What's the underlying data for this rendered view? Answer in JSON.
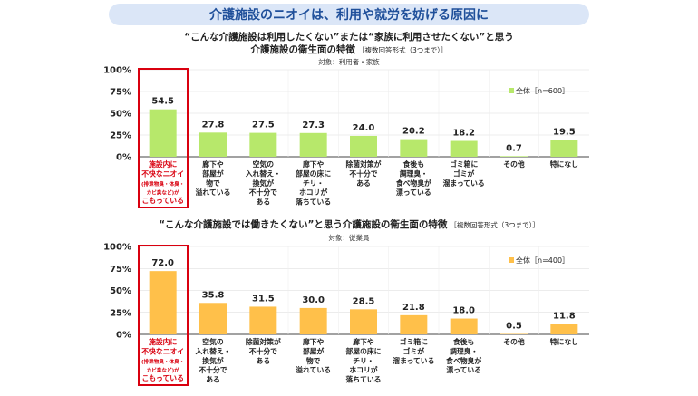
{
  "banner_title": "介護施設のニオイは、利用や就労を妨げる原因に",
  "colors": {
    "banner_bg": "#dbe6f7",
    "banner_text": "#1f4f9a",
    "green": "#b7e86b",
    "orange": "#ffc04a",
    "highlight": "#d9000f",
    "axis": "#444444",
    "grid": "#d9d9d9"
  },
  "chart_data": [
    {
      "type": "bar",
      "title_line1": "“こんな介護施設は利用したくない”または“家族に利用させたくない”と思う",
      "title_line2": "介護施設の衛生面の特徴",
      "title_note": "［複数回答形式（3つまで）］",
      "subtitle": "対象：利用者・家族",
      "legend": "全体［n=600］",
      "y_ticks": [
        "0%",
        "25%",
        "50%",
        "75%",
        "100%"
      ],
      "ylim": [
        0,
        100
      ],
      "categories": [
        [
          "施設内に",
          "不快なニオイ",
          "(排泄物臭・体臭・",
          "カビ臭など)が",
          "こもっている"
        ],
        [
          "廊下や",
          "部屋が",
          "物で",
          "溢れている"
        ],
        [
          "空気の",
          "入れ替え・",
          "換気が",
          "不十分で",
          "ある"
        ],
        [
          "廊下や",
          "部屋の床に",
          "チリ・",
          "ホコリが",
          "落ちている"
        ],
        [
          "除菌対策が",
          "不十分で",
          "ある"
        ],
        [
          "食後も",
          "調理臭・",
          "食べ物臭が",
          "漂っている"
        ],
        [
          "ゴミ箱に",
          "ゴミが",
          "溜まっている"
        ],
        [
          "その他"
        ],
        [
          "特になし"
        ]
      ],
      "values": [
        54.5,
        27.8,
        27.5,
        27.3,
        24.0,
        20.2,
        18.2,
        0.7,
        19.5
      ],
      "value_labels": [
        "54.5",
        "27.8",
        "27.5",
        "27.3",
        "24.0",
        "20.2",
        "18.2",
        "0.7",
        "19.5"
      ]
    },
    {
      "type": "bar",
      "title_line1": "“こんな介護施設では働きたくない”と思う介護施設の衛生面の特徴",
      "title_line2": "",
      "title_note": "［複数回答形式（3つまで）］",
      "subtitle": "対象：従業員",
      "legend": "全体［n=400］",
      "y_ticks": [
        "0%",
        "25%",
        "50%",
        "75%",
        "100%"
      ],
      "ylim": [
        0,
        100
      ],
      "categories": [
        [
          "施設内に",
          "不快なニオイ",
          "(排泄物臭・体臭・",
          "カビ臭など)が",
          "こもっている"
        ],
        [
          "空気の",
          "入れ替え・",
          "換気が",
          "不十分で",
          "ある"
        ],
        [
          "除菌対策が",
          "不十分で",
          "ある"
        ],
        [
          "廊下や",
          "部屋が",
          "物で",
          "溢れている"
        ],
        [
          "廊下や",
          "部屋の床に",
          "チリ・",
          "ホコリが",
          "落ちている"
        ],
        [
          "ゴミ箱に",
          "ゴミが",
          "溜まっている"
        ],
        [
          "食後も",
          "調理臭・",
          "食べ物臭が",
          "漂っている"
        ],
        [
          "その他"
        ],
        [
          "特になし"
        ]
      ],
      "values": [
        72.0,
        35.8,
        31.5,
        30.0,
        28.5,
        21.8,
        18.0,
        0.5,
        11.8
      ],
      "value_labels": [
        "72.0",
        "35.8",
        "31.5",
        "30.0",
        "28.5",
        "21.8",
        "18.0",
        "0.5",
        "11.8"
      ]
    }
  ]
}
